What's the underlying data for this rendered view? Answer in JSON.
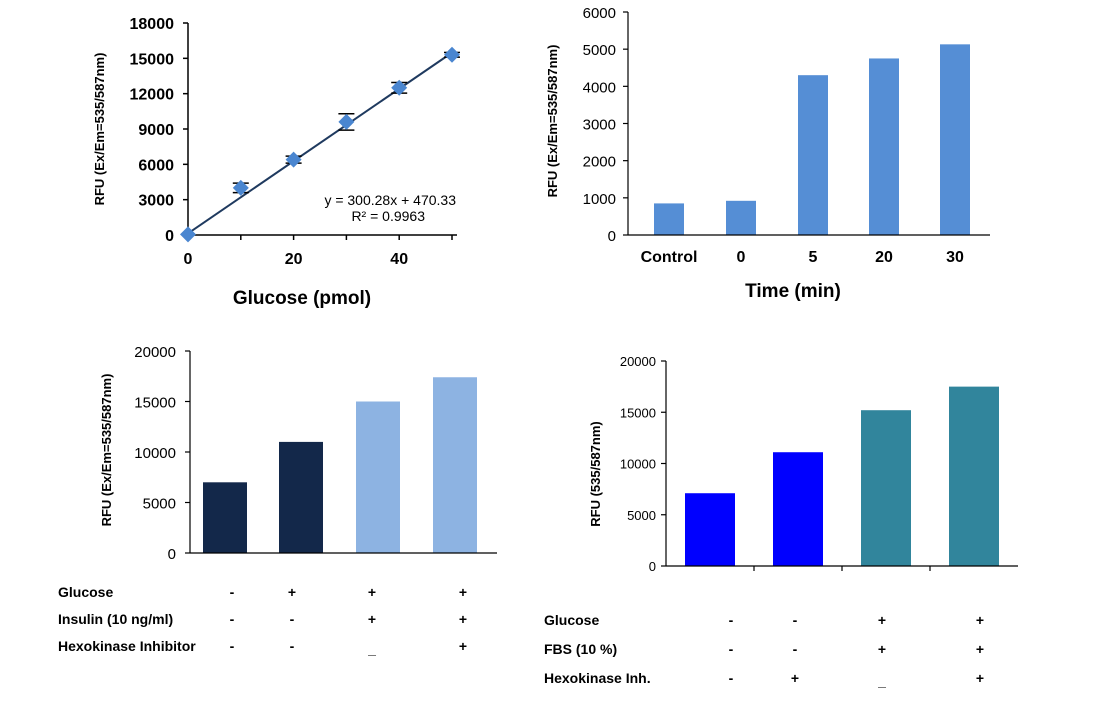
{
  "chart_data": [
    {
      "type": "scatter",
      "title": "",
      "xlabel": "Glucose (pmol)",
      "ylabel": "RFU (Ex/Em=535/587nm)",
      "xlim": [
        0,
        50
      ],
      "ylim": [
        0,
        18000
      ],
      "x_ticks": [
        "0",
        "20",
        "40"
      ],
      "y_ticks": [
        "0",
        "3000",
        "6000",
        "9000",
        "12000",
        "15000",
        "18000"
      ],
      "points": [
        {
          "x": 0,
          "y": 50,
          "err": 0
        },
        {
          "x": 10,
          "y": 4000,
          "err": 400
        },
        {
          "x": 20,
          "y": 6400,
          "err": 300
        },
        {
          "x": 30,
          "y": 9600,
          "err": 700
        },
        {
          "x": 40,
          "y": 12500,
          "err": 450
        },
        {
          "x": 50,
          "y": 15300,
          "err": 200
        }
      ],
      "trendline": {
        "slope": 300.28,
        "intercept": 470.33
      },
      "equation": "y = 300.28x + 470.33",
      "r_squared": "R² = 0.9963",
      "marker_color": "#4a86d0",
      "line_color": "#1f3a5f"
    },
    {
      "type": "bar",
      "title": "",
      "xlabel": "Time (min)",
      "ylabel": "RFU (Ex/Em=535/587nm)",
      "ylim": [
        0,
        6000
      ],
      "y_ticks": [
        "0",
        "1000",
        "2000",
        "3000",
        "4000",
        "5000",
        "6000"
      ],
      "categories": [
        "Control",
        "0",
        "5",
        "20",
        "30"
      ],
      "values": [
        850,
        920,
        4300,
        4750,
        5130
      ],
      "bar_color": "#558ed5"
    },
    {
      "type": "bar",
      "title": "",
      "xlabel": "",
      "ylabel": "RFU (Ex/Em=535/587nm)",
      "ylim": [
        0,
        20000
      ],
      "y_ticks": [
        "0",
        "5000",
        "10000",
        "15000",
        "20000"
      ],
      "values": [
        7000,
        11000,
        15000,
        17400
      ],
      "bar_colors": [
        "#13284a",
        "#13284a",
        "#8db3e2",
        "#8db3e2"
      ],
      "conditions": [
        {
          "label": "Glucose",
          "signs": [
            "-",
            "+",
            "+",
            "+"
          ]
        },
        {
          "label": "Insulin (10 ng/ml)",
          "signs": [
            "-",
            "-",
            "+",
            "+"
          ]
        },
        {
          "label": "Hexokinase Inhibitor",
          "signs": [
            "-",
            "-",
            "_",
            "+"
          ]
        }
      ]
    },
    {
      "type": "bar",
      "title": "",
      "xlabel": "",
      "ylabel": "RFU (535/587nm)",
      "ylim": [
        0,
        20000
      ],
      "y_ticks": [
        "0",
        "5000",
        "10000",
        "15000",
        "20000"
      ],
      "values": [
        7100,
        11100,
        15200,
        17500
      ],
      "bar_colors": [
        "#0000ff",
        "#0000ff",
        "#31859c",
        "#31859c"
      ],
      "conditions": [
        {
          "label": "Glucose",
          "signs": [
            "-",
            "-",
            "+",
            "+"
          ]
        },
        {
          "label": "FBS (10 %)",
          "signs": [
            "-",
            "-",
            "+",
            "+"
          ]
        },
        {
          "label": "Hexokinase Inh.",
          "signs": [
            "-",
            "+",
            "_",
            "+"
          ]
        }
      ]
    }
  ]
}
